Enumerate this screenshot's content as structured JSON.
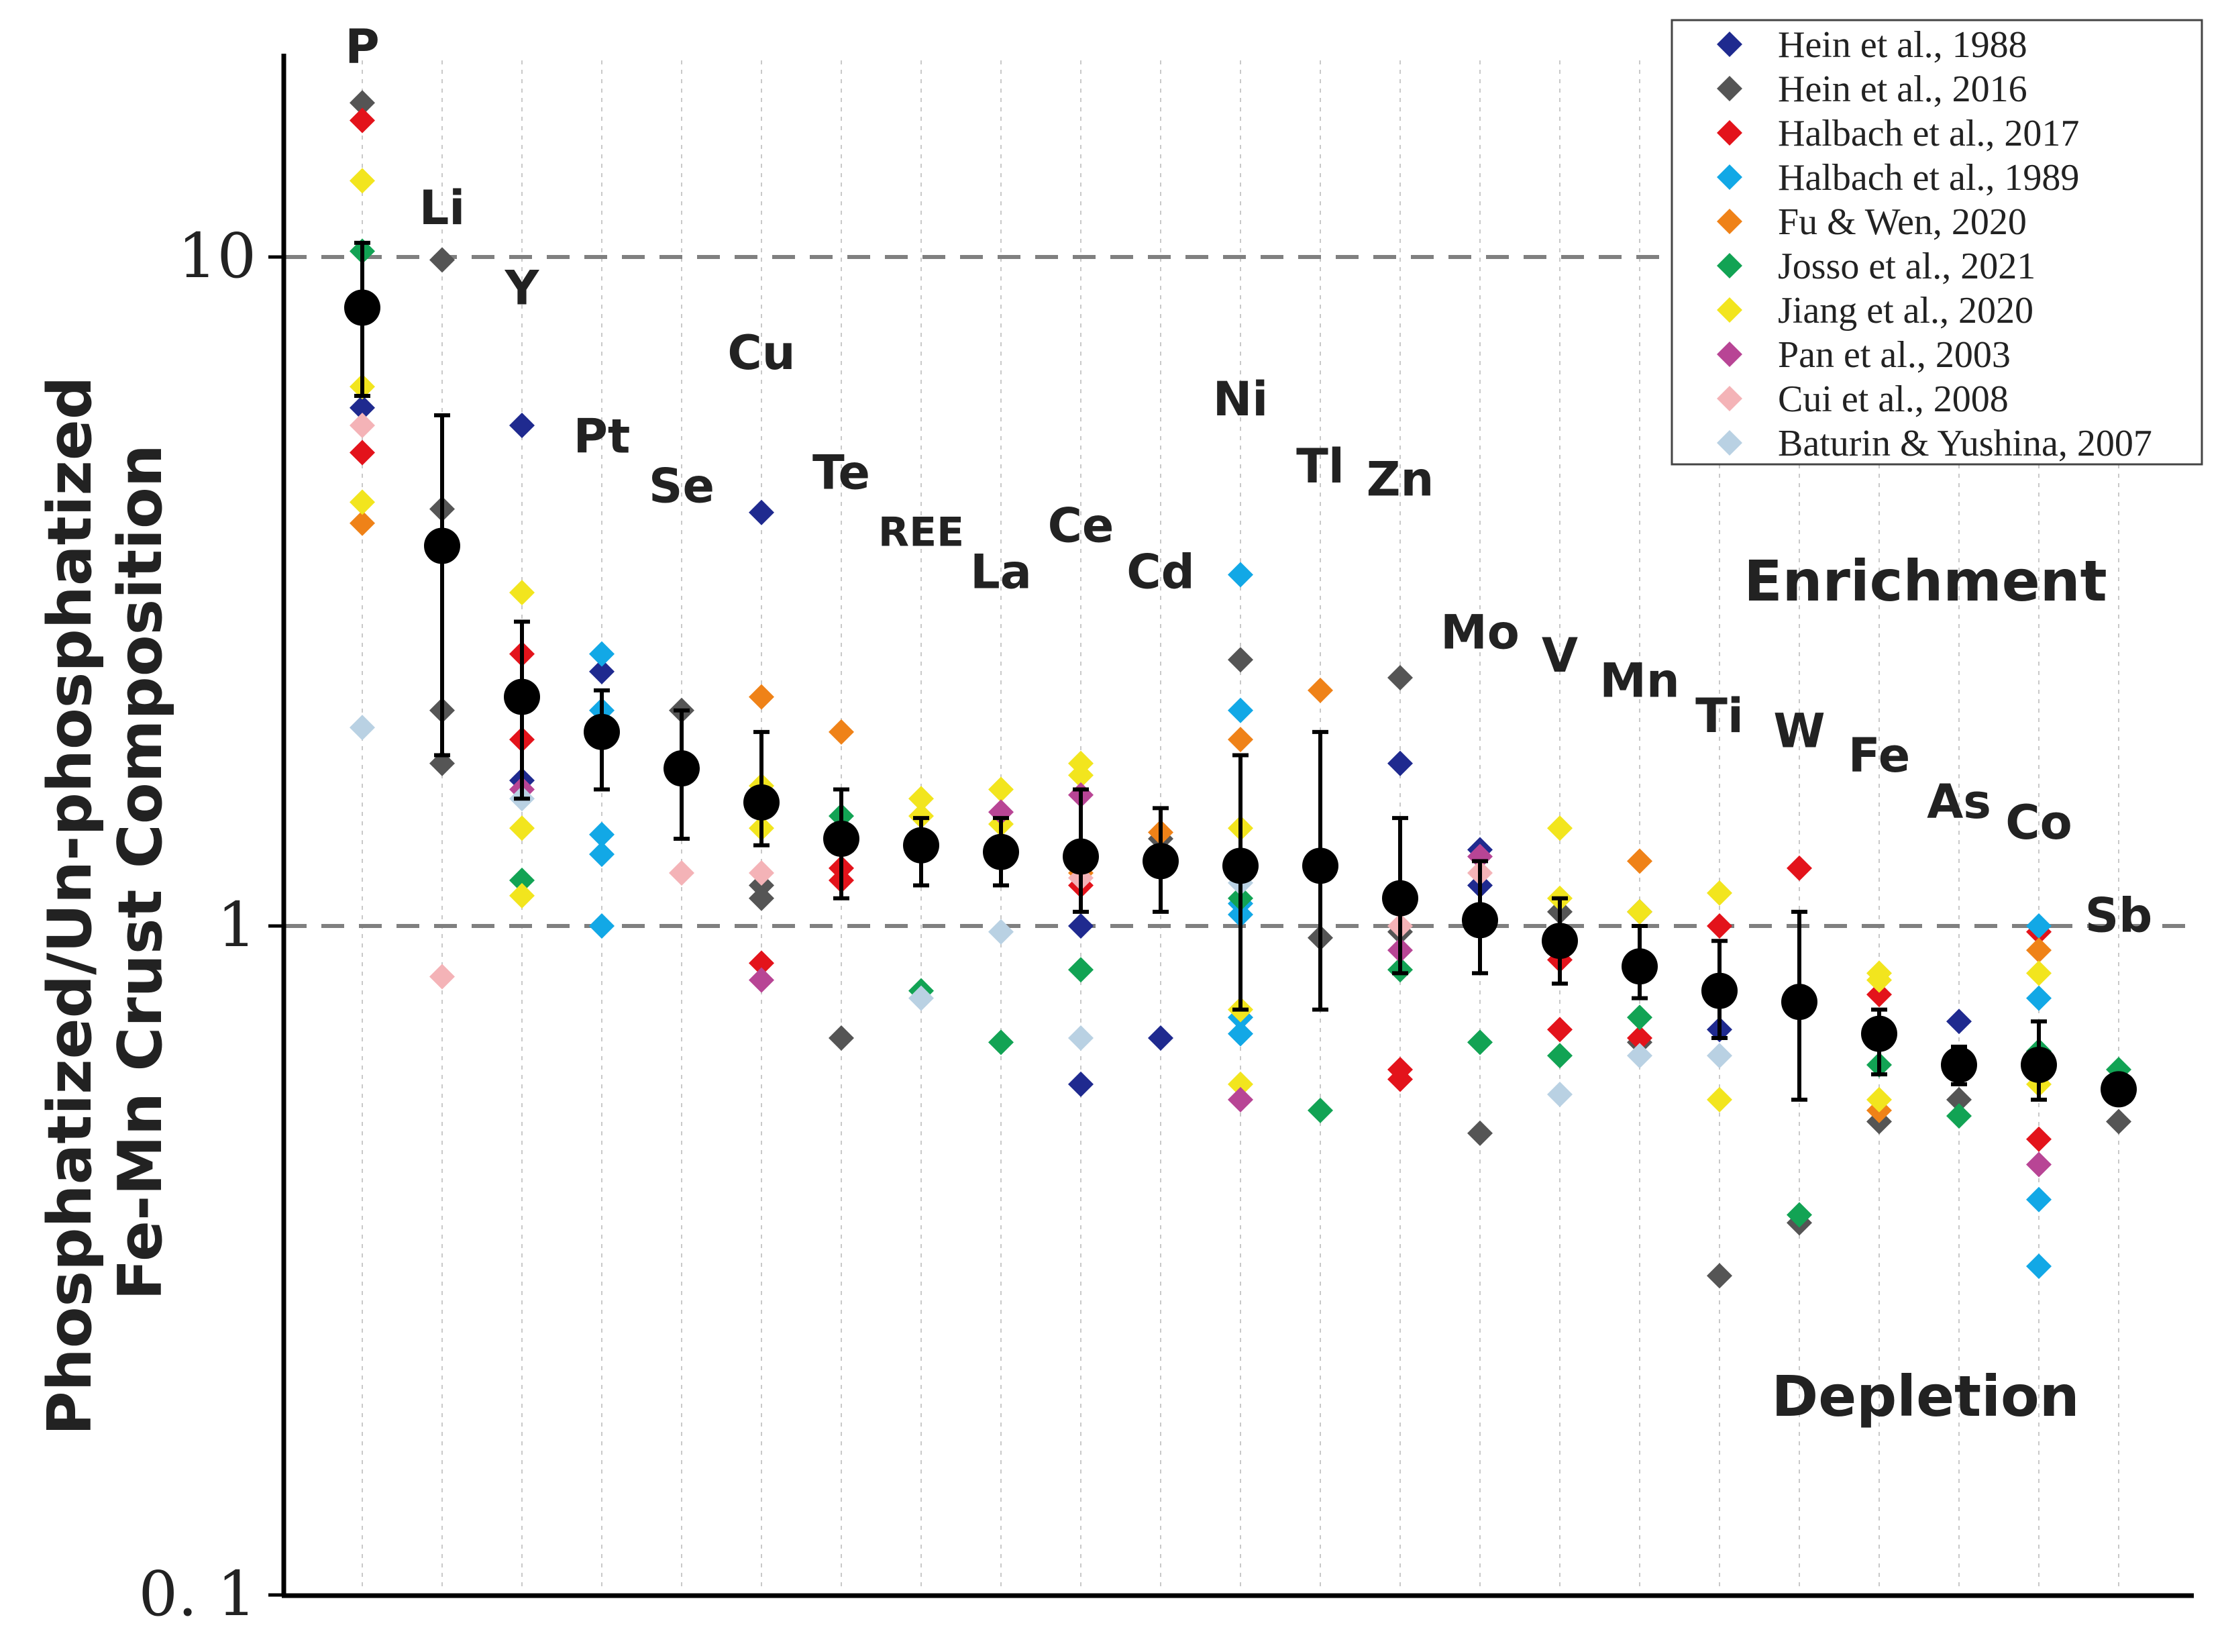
{
  "chart_data": {
    "type": "scatter",
    "y_scale": "log",
    "ylim": [
      0.1,
      20
    ],
    "ylabel_line1": "Phosphatized/Un-phosphatized",
    "ylabel_line2": "Fe-Mn Crust Composition",
    "yticks": [
      {
        "value": 0.1,
        "label": "0. 1"
      },
      {
        "value": 1,
        "label": "1"
      },
      {
        "value": 10,
        "label": "10"
      }
    ],
    "reference_lines": [
      1,
      10
    ],
    "regions": {
      "upper": "Enrichment",
      "lower": "Depletion"
    },
    "categories": [
      "P",
      "Li",
      "Y",
      "Pt",
      "Se",
      "Cu",
      "Te",
      "REE",
      "La",
      "Ce",
      "Cd",
      "Ni",
      "Tl",
      "Zn",
      "Mo",
      "V",
      "Mn",
      "Ti",
      "W",
      "Fe",
      "As",
      "Co",
      "Sb"
    ],
    "category_label_values": [
      19.5,
      11.2,
      8.5,
      5.1,
      4.3,
      6.8,
      4.5,
      3.7,
      3.2,
      3.75,
      3.2,
      5.8,
      4.6,
      4.4,
      2.6,
      2.4,
      2.2,
      1.95,
      1.85,
      1.7,
      1.45,
      1.35,
      0.98
    ],
    "series": [
      {
        "name": "Hein et al., 1988",
        "color": "#1f2a8f",
        "points": [
          [
            0,
            5.95
          ],
          [
            2,
            5.6
          ],
          [
            2,
            1.65
          ],
          [
            3,
            2.4
          ],
          [
            5,
            4.15
          ],
          [
            9,
            1.0
          ],
          [
            9,
            0.58
          ],
          [
            10,
            0.68
          ],
          [
            13,
            1.75
          ],
          [
            14,
            1.3
          ],
          [
            14,
            1.15
          ],
          [
            17,
            0.7
          ],
          [
            20,
            0.72
          ]
        ]
      },
      {
        "name": "Hein et al., 2016",
        "color": "#555555",
        "points": [
          [
            0,
            17.0
          ],
          [
            1,
            9.9
          ],
          [
            1,
            4.2
          ],
          [
            1,
            2.1
          ],
          [
            1,
            1.75
          ],
          [
            4,
            2.1
          ],
          [
            5,
            1.15
          ],
          [
            5,
            1.1
          ],
          [
            6,
            0.68
          ],
          [
            10,
            1.35
          ],
          [
            11,
            2.5
          ],
          [
            12,
            0.96
          ],
          [
            13,
            2.35
          ],
          [
            13,
            0.98
          ],
          [
            14,
            0.49
          ],
          [
            15,
            1.05
          ],
          [
            16,
            1.05
          ],
          [
            16,
            0.67
          ],
          [
            17,
            0.3
          ],
          [
            18,
            0.36
          ],
          [
            19,
            0.51
          ],
          [
            20,
            0.55
          ],
          [
            21,
            0.6
          ],
          [
            22,
            0.51
          ]
        ]
      },
      {
        "name": "Halbach et al., 2017",
        "color": "#e3131b",
        "points": [
          [
            0,
            16.0
          ],
          [
            0,
            5.1
          ],
          [
            2,
            2.55
          ],
          [
            2,
            1.9
          ],
          [
            5,
            0.88
          ],
          [
            6,
            1.22
          ],
          [
            6,
            1.17
          ],
          [
            9,
            1.15
          ],
          [
            13,
            0.59
          ],
          [
            13,
            0.61
          ],
          [
            15,
            0.89
          ],
          [
            15,
            0.7
          ],
          [
            16,
            0.68
          ],
          [
            17,
            1.0
          ],
          [
            18,
            1.22
          ],
          [
            19,
            0.79
          ],
          [
            21,
            0.98
          ],
          [
            21,
            0.48
          ]
        ]
      },
      {
        "name": "Halbach et al., 1989",
        "color": "#12a8e6",
        "points": [
          [
            3,
            2.55
          ],
          [
            3,
            2.1
          ],
          [
            3,
            1.37
          ],
          [
            3,
            1.28
          ],
          [
            3,
            1.0
          ],
          [
            11,
            3.35
          ],
          [
            11,
            2.1
          ],
          [
            11,
            1.08
          ],
          [
            11,
            1.04
          ],
          [
            11,
            0.73
          ],
          [
            11,
            0.69
          ],
          [
            21,
            1.0
          ],
          [
            21,
            0.78
          ],
          [
            21,
            0.39
          ],
          [
            21,
            0.31
          ]
        ]
      },
      {
        "name": "Fu & Wen, 2020",
        "color": "#ef8218",
        "points": [
          [
            0,
            4.0
          ],
          [
            5,
            2.2
          ],
          [
            6,
            1.95
          ],
          [
            9,
            1.2
          ],
          [
            10,
            1.38
          ],
          [
            11,
            1.9
          ],
          [
            12,
            2.25
          ],
          [
            16,
            1.25
          ],
          [
            19,
            0.53
          ],
          [
            21,
            0.92
          ]
        ]
      },
      {
        "name": "Josso et al., 2021",
        "color": "#12a354",
        "points": [
          [
            0,
            10.2
          ],
          [
            2,
            1.17
          ],
          [
            3,
            1.95
          ],
          [
            6,
            1.46
          ],
          [
            7,
            0.8
          ],
          [
            8,
            0.67
          ],
          [
            9,
            0.86
          ],
          [
            11,
            1.1
          ],
          [
            12,
            0.53
          ],
          [
            13,
            0.86
          ],
          [
            14,
            0.67
          ],
          [
            15,
            0.64
          ],
          [
            16,
            0.73
          ],
          [
            18,
            0.37
          ],
          [
            19,
            0.62
          ],
          [
            20,
            0.52
          ],
          [
            21,
            0.65
          ],
          [
            22,
            0.61
          ]
        ]
      },
      {
        "name": "Jiang et al., 2020",
        "color": "#f2e51e",
        "points": [
          [
            0,
            13.0
          ],
          [
            0,
            6.4
          ],
          [
            0,
            4.3
          ],
          [
            2,
            3.15
          ],
          [
            2,
            1.4
          ],
          [
            2,
            1.11
          ],
          [
            5,
            1.62
          ],
          [
            5,
            1.4
          ],
          [
            7,
            1.55
          ],
          [
            7,
            1.46
          ],
          [
            8,
            1.6
          ],
          [
            8,
            1.42
          ],
          [
            9,
            1.75
          ],
          [
            9,
            1.68
          ],
          [
            11,
            1.4
          ],
          [
            11,
            0.75
          ],
          [
            11,
            0.58
          ],
          [
            15,
            1.4
          ],
          [
            15,
            1.1
          ],
          [
            15,
            0.95
          ],
          [
            16,
            1.05
          ],
          [
            17,
            1.12
          ],
          [
            17,
            0.55
          ],
          [
            19,
            0.85
          ],
          [
            19,
            0.83
          ],
          [
            19,
            0.55
          ],
          [
            21,
            0.85
          ],
          [
            21,
            0.58
          ]
        ]
      },
      {
        "name": "Pan et al., 2003",
        "color": "#b84595",
        "points": [
          [
            2,
            1.6
          ],
          [
            5,
            0.83
          ],
          [
            8,
            1.48
          ],
          [
            9,
            1.57
          ],
          [
            11,
            0.55
          ],
          [
            13,
            0.92
          ],
          [
            14,
            1.27
          ],
          [
            21,
            0.44
          ]
        ]
      },
      {
        "name": "Cui et al., 2008",
        "color": "#f4b3b7",
        "points": [
          [
            0,
            5.6
          ],
          [
            1,
            0.84
          ],
          [
            4,
            1.2
          ],
          [
            5,
            1.2
          ],
          [
            9,
            1.18
          ],
          [
            13,
            1.0
          ],
          [
            14,
            1.2
          ]
        ]
      },
      {
        "name": "Baturin & Yushina, 2007",
        "color": "#b9d1e3",
        "points": [
          [
            0,
            1.98
          ],
          [
            2,
            1.55
          ],
          [
            7,
            0.78
          ],
          [
            8,
            0.98
          ],
          [
            9,
            0.68
          ],
          [
            11,
            1.16
          ],
          [
            15,
            0.56
          ],
          [
            16,
            0.64
          ],
          [
            17,
            0.64
          ]
        ]
      }
    ],
    "mean_series": {
      "color": "#000000",
      "values": [
        8.4,
        3.7,
        2.2,
        1.95,
        1.72,
        1.53,
        1.35,
        1.32,
        1.29,
        1.27,
        1.25,
        1.23,
        1.23,
        1.1,
        1.02,
        0.95,
        0.87,
        0.8,
        0.77,
        0.69,
        0.62,
        0.62,
        0.57
      ],
      "err_low": [
        6.2,
        1.8,
        1.55,
        1.6,
        1.35,
        1.32,
        1.1,
        1.15,
        1.15,
        1.05,
        1.05,
        0.75,
        0.75,
        0.85,
        0.85,
        0.82,
        0.78,
        0.68,
        0.55,
        0.6,
        0.58,
        0.55,
        0.55
      ],
      "err_high": [
        10.5,
        5.8,
        2.85,
        2.25,
        2.1,
        1.95,
        1.6,
        1.45,
        1.45,
        1.6,
        1.5,
        1.8,
        1.95,
        1.45,
        1.25,
        1.1,
        1.0,
        0.95,
        1.05,
        0.75,
        0.66,
        0.72,
        0.58
      ]
    },
    "legend_position": "top-right",
    "grid": "vertical dotted lines at each category"
  }
}
